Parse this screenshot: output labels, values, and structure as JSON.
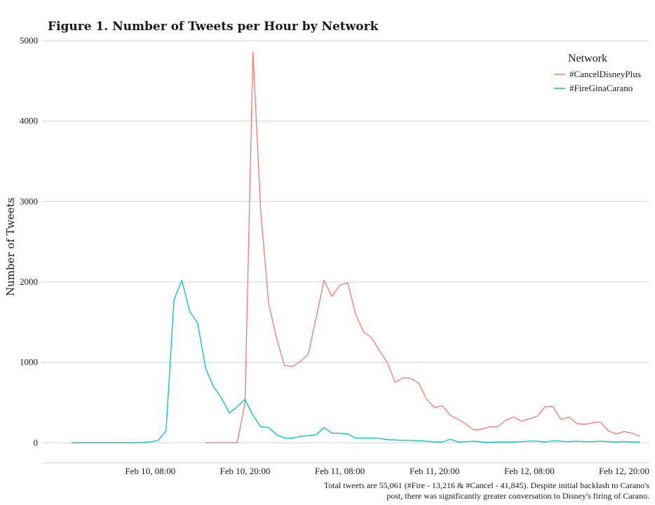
{
  "chart_data": {
    "type": "line",
    "title": "Figure 1. Number of Tweets per Hour by Network",
    "xlabel": "",
    "ylabel": "Number of Tweets",
    "ylim": [
      -250,
      5000
    ],
    "yticks": [
      0,
      1000,
      2000,
      3000,
      4000,
      5000
    ],
    "x_axis_unit": "hours",
    "x_tick_labels": [
      {
        "label": "Feb 10, 08:00",
        "hour": 36
      },
      {
        "label": "Feb 10, 20:00",
        "hour": 48
      },
      {
        "label": "Feb 11, 08:00",
        "hour": 60
      },
      {
        "label": "Feb 11, 20:00",
        "hour": 72
      },
      {
        "label": "Feb 12, 08:00",
        "hour": 84
      },
      {
        "label": "Feb 12, 20:00",
        "hour": 96
      }
    ],
    "xlim": [
      22.3,
      99.2
    ],
    "grid": true,
    "legend": {
      "title": "Network",
      "position": "top-right"
    },
    "series": [
      {
        "name": "#CancelDisneyPlus",
        "color": "#F8766D",
        "points": [
          [
            43,
            0
          ],
          [
            44,
            0
          ],
          [
            45,
            2
          ],
          [
            46,
            2
          ],
          [
            47,
            0
          ],
          [
            48,
            500
          ],
          [
            49,
            4860
          ],
          [
            50,
            2860
          ],
          [
            51,
            1720
          ],
          [
            52,
            1300
          ],
          [
            53,
            960
          ],
          [
            54,
            950
          ],
          [
            55,
            1010
          ],
          [
            56,
            1100
          ],
          [
            57,
            1560
          ],
          [
            58,
            2020
          ],
          [
            59,
            1820
          ],
          [
            60,
            1960
          ],
          [
            61,
            1990
          ],
          [
            62,
            1600
          ],
          [
            63,
            1380
          ],
          [
            64,
            1310
          ],
          [
            65,
            1150
          ],
          [
            66,
            1000
          ],
          [
            67,
            750
          ],
          [
            68,
            810
          ],
          [
            69,
            800
          ],
          [
            70,
            740
          ],
          [
            71,
            540
          ],
          [
            72,
            440
          ],
          [
            73,
            460
          ],
          [
            74,
            340
          ],
          [
            75,
            290
          ],
          [
            76,
            230
          ],
          [
            77,
            160
          ],
          [
            78,
            170
          ],
          [
            79,
            200
          ],
          [
            80,
            200
          ],
          [
            81,
            280
          ],
          [
            82,
            320
          ],
          [
            83,
            270
          ],
          [
            84,
            300
          ],
          [
            85,
            330
          ],
          [
            86,
            450
          ],
          [
            87,
            450
          ],
          [
            88,
            290
          ],
          [
            89,
            320
          ],
          [
            90,
            240
          ],
          [
            91,
            230
          ],
          [
            92,
            250
          ],
          [
            93,
            260
          ],
          [
            94,
            150
          ],
          [
            95,
            110
          ],
          [
            96,
            140
          ],
          [
            97,
            120
          ],
          [
            98,
            80
          ]
        ]
      },
      {
        "name": "#FireGinaCarano",
        "color": "#00BFC4",
        "points": [
          [
            26,
            0
          ],
          [
            27,
            0
          ],
          [
            28,
            0
          ],
          [
            29,
            0
          ],
          [
            30,
            0
          ],
          [
            31,
            0
          ],
          [
            32,
            0
          ],
          [
            33,
            0
          ],
          [
            34,
            2
          ],
          [
            35,
            5
          ],
          [
            36,
            10
          ],
          [
            37,
            30
          ],
          [
            38,
            150
          ],
          [
            39,
            1780
          ],
          [
            40,
            2020
          ],
          [
            41,
            1630
          ],
          [
            42,
            1490
          ],
          [
            43,
            930
          ],
          [
            44,
            700
          ],
          [
            45,
            560
          ],
          [
            46,
            370
          ],
          [
            47,
            450
          ],
          [
            48,
            540
          ],
          [
            49,
            340
          ],
          [
            50,
            200
          ],
          [
            51,
            190
          ],
          [
            52,
            100
          ],
          [
            53,
            60
          ],
          [
            54,
            60
          ],
          [
            55,
            80
          ],
          [
            56,
            90
          ],
          [
            57,
            100
          ],
          [
            58,
            190
          ],
          [
            59,
            120
          ],
          [
            60,
            120
          ],
          [
            61,
            110
          ],
          [
            62,
            60
          ],
          [
            63,
            60
          ],
          [
            64,
            60
          ],
          [
            65,
            55
          ],
          [
            66,
            40
          ],
          [
            67,
            35
          ],
          [
            68,
            30
          ],
          [
            69,
            30
          ],
          [
            70,
            25
          ],
          [
            71,
            20
          ],
          [
            72,
            10
          ],
          [
            73,
            10
          ],
          [
            74,
            45
          ],
          [
            75,
            10
          ],
          [
            76,
            15
          ],
          [
            77,
            20
          ],
          [
            78,
            10
          ],
          [
            79,
            5
          ],
          [
            80,
            10
          ],
          [
            81,
            10
          ],
          [
            82,
            10
          ],
          [
            83,
            15
          ],
          [
            84,
            20
          ],
          [
            85,
            20
          ],
          [
            86,
            10
          ],
          [
            87,
            25
          ],
          [
            88,
            20
          ],
          [
            89,
            15
          ],
          [
            90,
            20
          ],
          [
            91,
            15
          ],
          [
            92,
            15
          ],
          [
            93,
            20
          ],
          [
            94,
            15
          ],
          [
            95,
            10
          ],
          [
            96,
            15
          ],
          [
            97,
            10
          ],
          [
            98,
            10
          ]
        ]
      }
    ],
    "caption": [
      "Total tweets are 55,061 (#Fire - 13,216 & #Cancel - 41,845). Despite initial backlash to Carano's",
      "post, there was significantly greater conversation to Disney's firing of Carano."
    ]
  }
}
